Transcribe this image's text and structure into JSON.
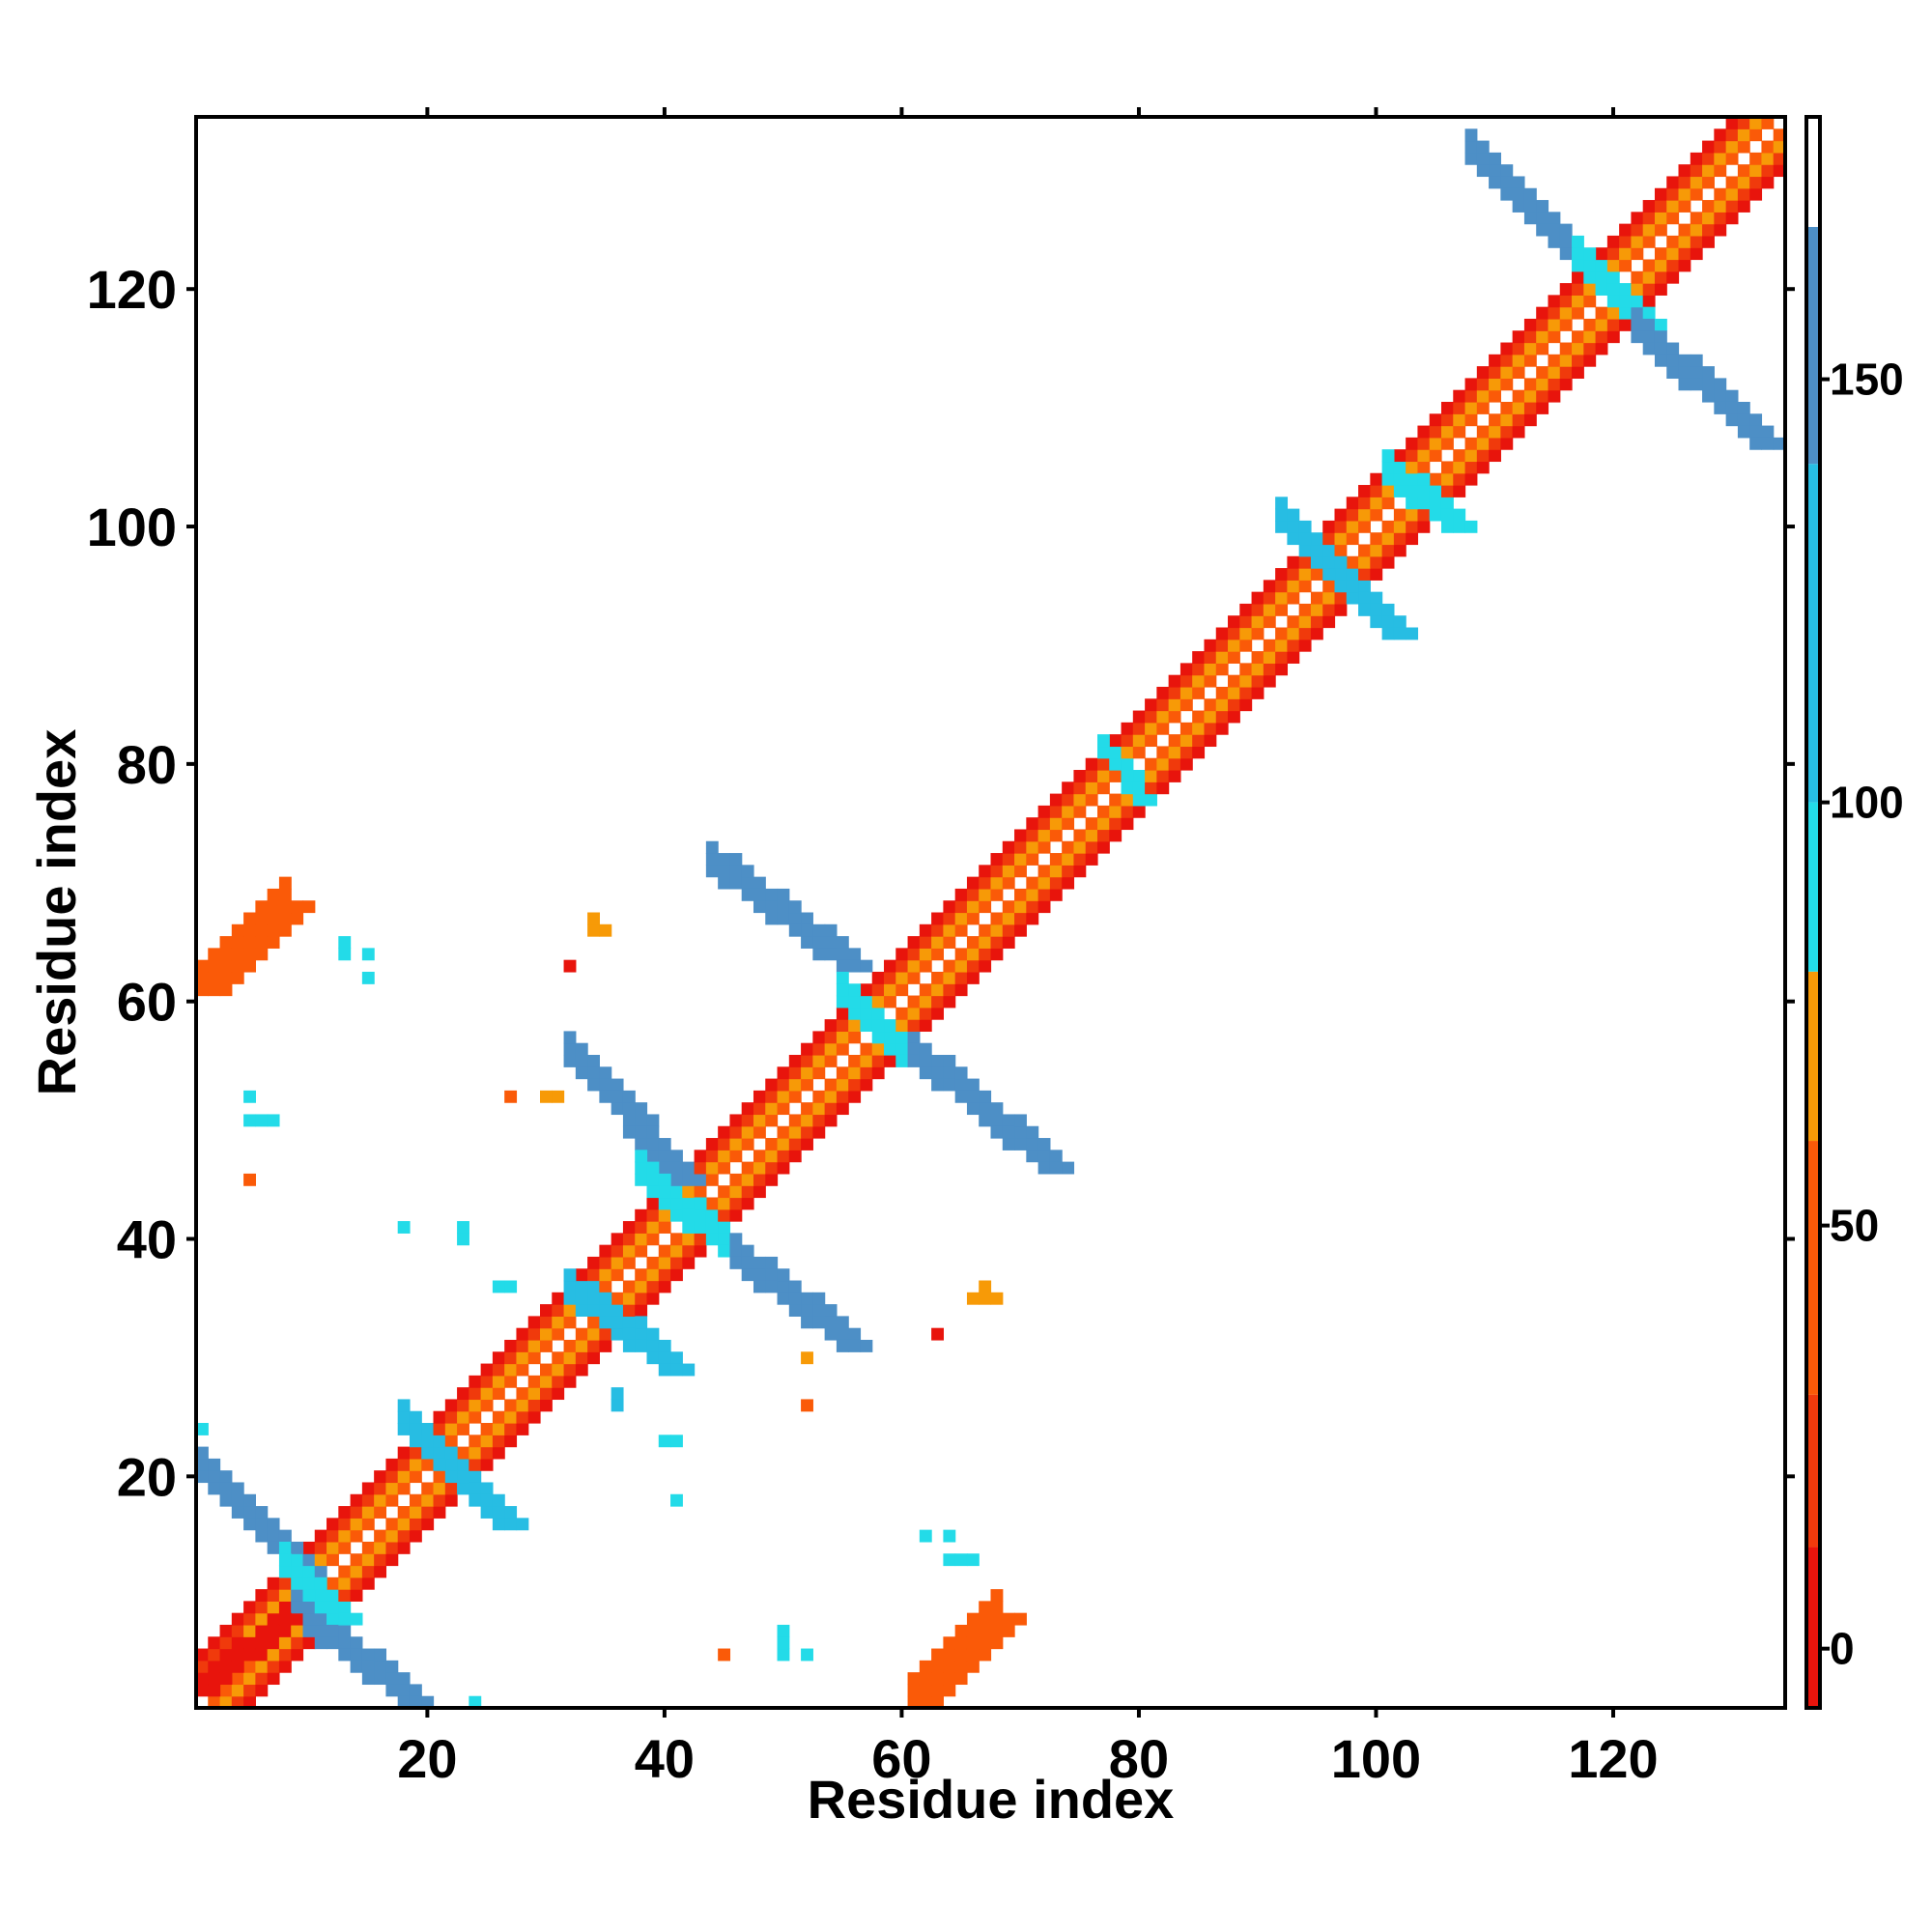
{
  "chart_data": {
    "type": "heatmap",
    "title": "",
    "xlabel": "Residue index",
    "ylabel": "Residue index",
    "xlim": [
      1,
      134
    ],
    "ylim": [
      1,
      134
    ],
    "x_ticks": [
      20,
      40,
      60,
      80,
      100,
      120
    ],
    "y_ticks": [
      20,
      40,
      60,
      80,
      100,
      120
    ],
    "colorbar": {
      "range": [
        -7,
        181
      ],
      "ticks": [
        0,
        50,
        100,
        150
      ],
      "bands": [
        {
          "from": -7,
          "to": 12,
          "color": "#e8140c"
        },
        {
          "from": 12,
          "to": 30,
          "color": "#f03a0c"
        },
        {
          "from": 30,
          "to": 60,
          "color": "#fa5a08"
        },
        {
          "from": 60,
          "to": 80,
          "color": "#f79a07"
        },
        {
          "from": 80,
          "to": 100,
          "color": "#23dbe8"
        },
        {
          "from": 100,
          "to": 140,
          "color": "#27bde3"
        },
        {
          "from": 140,
          "to": 168,
          "color": "#4d8fc6"
        },
        {
          "from": 168,
          "to": 181,
          "color": "#ffffff"
        }
      ]
    },
    "diagonal_band": {
      "min_offset": 1,
      "max_offset": 4,
      "pattern": [
        {
          "offset": 1,
          "color": "#fa5a08"
        },
        {
          "offset": 2,
          "color": "#f79a07"
        },
        {
          "offset": 3,
          "color": "#f03a0c"
        },
        {
          "offset": 4,
          "color": "#e8140c"
        }
      ]
    },
    "segments": [
      {
        "x": [
          1,
          9
        ],
        "y": [
          20,
          12
        ],
        "w": 3,
        "color": "#4d8fc6"
      },
      {
        "x": [
          9,
          18
        ],
        "y": [
          8,
          1
        ],
        "w": 3,
        "color": "#4d8fc6"
      },
      {
        "x": [
          8,
          12
        ],
        "y": [
          12,
          8
        ],
        "w": 3,
        "color": "#23dbe8"
      },
      {
        "x": [
          1,
          8
        ],
        "y": [
          2,
          8
        ],
        "w": 2,
        "color": "#e8140c"
      },
      {
        "x": [
          18,
          26
        ],
        "y": [
          24,
          16
        ],
        "w": 3,
        "color": "#27bde3"
      },
      {
        "x": [
          32,
          40
        ],
        "y": [
          35,
          29
        ],
        "w": 3,
        "color": "#27bde3"
      },
      {
        "x": [
          32,
          41
        ],
        "y": [
          55,
          45
        ],
        "w": 3,
        "color": "#4d8fc6"
      },
      {
        "x": [
          38,
          47
        ],
        "y": [
          45,
          37
        ],
        "w": 3,
        "color": "#23dbe8"
      },
      {
        "x": [
          46,
          55
        ],
        "y": [
          38,
          31
        ],
        "w": 3,
        "color": "#4d8fc6"
      },
      {
        "x": [
          44,
          55
        ],
        "y": [
          71,
          63
        ],
        "w": 3,
        "color": "#4d8fc6"
      },
      {
        "x": [
          55,
          60
        ],
        "y": [
          60,
          55
        ],
        "w": 3,
        "color": "#23dbe8"
      },
      {
        "x": [
          61,
          72
        ],
        "y": [
          55,
          46
        ],
        "w": 3,
        "color": "#4d8fc6"
      },
      {
        "x": [
          77,
          80
        ],
        "y": [
          81,
          77
        ],
        "w": 2,
        "color": "#23dbe8"
      },
      {
        "x": [
          92,
          98
        ],
        "y": [
          100,
          94
        ],
        "w": 3,
        "color": "#27bde3"
      },
      {
        "x": [
          94,
          101
        ],
        "y": [
          98,
          91
        ],
        "w": 3,
        "color": "#27bde3"
      },
      {
        "x": [
          101,
          106
        ],
        "y": [
          104,
          100
        ],
        "w": 3,
        "color": "#23dbe8"
      },
      {
        "x": [
          108,
          119
        ],
        "y": [
          131,
          120
        ],
        "w": 3,
        "color": "#4d8fc6"
      },
      {
        "x": [
          117,
          122
        ],
        "y": [
          122,
          117
        ],
        "w": 3,
        "color": "#23dbe8"
      },
      {
        "x": [
          122,
          132
        ],
        "y": [
          116,
          107
        ],
        "w": 3,
        "color": "#4d8fc6"
      },
      {
        "x": [
          1,
          8
        ],
        "y": [
          61,
          68
        ],
        "w": 3,
        "color": "#fa5a08"
      },
      {
        "x": [
          61,
          68
        ],
        "y": [
          1,
          8
        ],
        "w": 3,
        "color": "#fa5a08"
      }
    ],
    "points": [
      {
        "x": 1,
        "y": 24,
        "color": "#23dbe8"
      },
      {
        "x": 13,
        "y": 64,
        "color": "#23dbe8"
      },
      {
        "x": 13,
        "y": 65,
        "color": "#23dbe8"
      },
      {
        "x": 15,
        "y": 62,
        "color": "#23dbe8"
      },
      {
        "x": 15,
        "y": 64,
        "color": "#23dbe8"
      },
      {
        "x": 34,
        "y": 66,
        "color": "#f79a07"
      },
      {
        "x": 34,
        "y": 67,
        "color": "#f79a07"
      },
      {
        "x": 35,
        "y": 66,
        "color": "#f79a07"
      },
      {
        "x": 32,
        "y": 63,
        "color": "#e8140c"
      },
      {
        "x": 5,
        "y": 52,
        "color": "#23dbe8"
      },
      {
        "x": 5,
        "y": 50,
        "color": "#23dbe8"
      },
      {
        "x": 6,
        "y": 50,
        "color": "#23dbe8"
      },
      {
        "x": 7,
        "y": 50,
        "color": "#23dbe8"
      },
      {
        "x": 5,
        "y": 45,
        "color": "#fa5a08"
      },
      {
        "x": 27,
        "y": 52,
        "color": "#fa5a08"
      },
      {
        "x": 30,
        "y": 52,
        "color": "#f79a07"
      },
      {
        "x": 31,
        "y": 52,
        "color": "#f79a07"
      },
      {
        "x": 18,
        "y": 41,
        "color": "#23dbe8"
      },
      {
        "x": 23,
        "y": 40,
        "color": "#23dbe8"
      },
      {
        "x": 23,
        "y": 41,
        "color": "#23dbe8"
      },
      {
        "x": 26,
        "y": 36,
        "color": "#23dbe8"
      },
      {
        "x": 27,
        "y": 36,
        "color": "#23dbe8"
      },
      {
        "x": 36,
        "y": 27,
        "color": "#27bde3"
      },
      {
        "x": 36,
        "y": 26,
        "color": "#27bde3"
      },
      {
        "x": 40,
        "y": 23,
        "color": "#23dbe8"
      },
      {
        "x": 41,
        "y": 23,
        "color": "#23dbe8"
      },
      {
        "x": 41,
        "y": 18,
        "color": "#23dbe8"
      },
      {
        "x": 63,
        "y": 32,
        "color": "#e8140c"
      },
      {
        "x": 66,
        "y": 35,
        "color": "#f79a07"
      },
      {
        "x": 67,
        "y": 35,
        "color": "#f79a07"
      },
      {
        "x": 68,
        "y": 35,
        "color": "#f79a07"
      },
      {
        "x": 67,
        "y": 36,
        "color": "#f79a07"
      },
      {
        "x": 52,
        "y": 30,
        "color": "#f79a07"
      },
      {
        "x": 52,
        "y": 26,
        "color": "#fa5a08"
      },
      {
        "x": 52,
        "y": 5,
        "color": "#23dbe8"
      },
      {
        "x": 50,
        "y": 5,
        "color": "#23dbe8"
      },
      {
        "x": 50,
        "y": 6,
        "color": "#23dbe8"
      },
      {
        "x": 50,
        "y": 7,
        "color": "#23dbe8"
      },
      {
        "x": 45,
        "y": 5,
        "color": "#fa5a08"
      },
      {
        "x": 24,
        "y": 1,
        "color": "#23dbe8"
      },
      {
        "x": 62,
        "y": 15,
        "color": "#23dbe8"
      },
      {
        "x": 64,
        "y": 15,
        "color": "#23dbe8"
      },
      {
        "x": 64,
        "y": 13,
        "color": "#23dbe8"
      },
      {
        "x": 65,
        "y": 13,
        "color": "#23dbe8"
      },
      {
        "x": 66,
        "y": 13,
        "color": "#23dbe8"
      }
    ]
  }
}
